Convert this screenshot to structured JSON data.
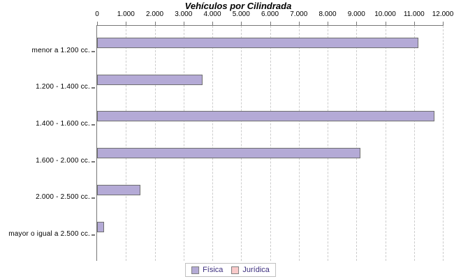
{
  "chart_data": {
    "type": "bar",
    "orientation": "horizontal",
    "title": "Vehículos por Cilindrada",
    "categories": [
      "menor a 1.200 cc.",
      "1.200 - 1.400 cc.",
      "1.400 - 1.600 cc.",
      "1.600 - 2.000 cc.",
      "2.000 - 2.500 cc.",
      "mayor o igual a 2.500 cc."
    ],
    "series": [
      {
        "name": "Física",
        "color": "#b4aad6",
        "values": [
          11100,
          3600,
          11650,
          9100,
          1450,
          200
        ]
      },
      {
        "name": "Jurídica",
        "color": "#f9caca",
        "values": [
          0,
          0,
          0,
          0,
          0,
          0
        ]
      }
    ],
    "x_ticks": [
      "0",
      "1.000",
      "2.000",
      "3.000",
      "4.000",
      "5.000",
      "6.000",
      "7.000",
      "8.000",
      "9.000",
      "10.000",
      "11.000",
      "12.000"
    ],
    "xlim": [
      0,
      12000
    ],
    "xlabel": "",
    "ylabel": "",
    "grid": "vertical-dashed",
    "axis_position": "top",
    "legend_position": "bottom"
  },
  "colors": {
    "background": "#ffffff",
    "bar_fisica": "#b4aad6",
    "bar_juridica": "#f9caca",
    "bar_border": "#6f6f6f",
    "axis": "#777777",
    "grid": "#cccccc",
    "legend_border": "#bfbfbf",
    "legend_text": "#3c2e7e",
    "text": "#000000"
  }
}
